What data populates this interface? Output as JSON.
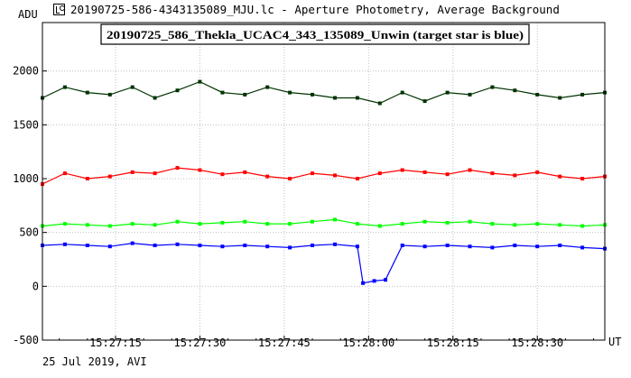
{
  "window": {
    "title": "20190725-586-4343135089_MJU.lc - Aperture Photometry, Average Background",
    "icon": "photometry-app-icon"
  },
  "footer": {
    "date_text": "25 Jul 2019, AVI"
  },
  "chart_data": {
    "type": "line",
    "title": "20190725_586_Thekla_UCAC4_343_135089_Unwin (target star is blue)",
    "ylabel": "ADU",
    "xlabel": "UT",
    "xlim": [
      "15:27:02",
      "15:28:42"
    ],
    "ylim": [
      -500,
      2450
    ],
    "yticks": [
      -500,
      0,
      500,
      1000,
      1500,
      2000
    ],
    "xticks": [
      "15:27:15",
      "15:27:30",
      "15:27:45",
      "15:28:00",
      "15:28:15",
      "15:28:30"
    ],
    "grid": true,
    "series": [
      {
        "color": "#003300",
        "x": [
          "15:27:02",
          "15:27:06",
          "15:27:10",
          "15:27:14",
          "15:27:18",
          "15:27:22",
          "15:27:26",
          "15:27:30",
          "15:27:34",
          "15:27:38",
          "15:27:42",
          "15:27:46",
          "15:27:50",
          "15:27:54",
          "15:27:58",
          "15:28:02",
          "15:28:06",
          "15:28:10",
          "15:28:14",
          "15:28:18",
          "15:28:22",
          "15:28:26",
          "15:28:30",
          "15:28:34",
          "15:28:38",
          "15:28:42"
        ],
        "values": [
          1750,
          1850,
          1800,
          1780,
          1850,
          1750,
          1820,
          1900,
          1800,
          1780,
          1850,
          1800,
          1780,
          1750,
          1750,
          1700,
          1800,
          1720,
          1800,
          1780,
          1850,
          1820,
          1780,
          1750,
          1780,
          1800
        ]
      },
      {
        "color": "#ff0000",
        "x": [
          "15:27:02",
          "15:27:06",
          "15:27:10",
          "15:27:14",
          "15:27:18",
          "15:27:22",
          "15:27:26",
          "15:27:30",
          "15:27:34",
          "15:27:38",
          "15:27:42",
          "15:27:46",
          "15:27:50",
          "15:27:54",
          "15:27:58",
          "15:28:02",
          "15:28:06",
          "15:28:10",
          "15:28:14",
          "15:28:18",
          "15:28:22",
          "15:28:26",
          "15:28:30",
          "15:28:34",
          "15:28:38",
          "15:28:42"
        ],
        "values": [
          950,
          1050,
          1000,
          1020,
          1060,
          1050,
          1100,
          1080,
          1040,
          1060,
          1020,
          1000,
          1050,
          1030,
          1000,
          1050,
          1080,
          1060,
          1040,
          1080,
          1050,
          1030,
          1060,
          1020,
          1000,
          1020
        ]
      },
      {
        "color": "#00ff00",
        "x": [
          "15:27:02",
          "15:27:06",
          "15:27:10",
          "15:27:14",
          "15:27:18",
          "15:27:22",
          "15:27:26",
          "15:27:30",
          "15:27:34",
          "15:27:38",
          "15:27:42",
          "15:27:46",
          "15:27:50",
          "15:27:54",
          "15:27:58",
          "15:28:02",
          "15:28:06",
          "15:28:10",
          "15:28:14",
          "15:28:18",
          "15:28:22",
          "15:28:26",
          "15:28:30",
          "15:28:34",
          "15:28:38",
          "15:28:42"
        ],
        "values": [
          560,
          580,
          570,
          560,
          580,
          570,
          600,
          580,
          590,
          600,
          580,
          580,
          600,
          620,
          580,
          560,
          580,
          600,
          590,
          600,
          580,
          570,
          580,
          570,
          560,
          570
        ]
      },
      {
        "color": "#0000ff",
        "x": [
          "15:27:02",
          "15:27:06",
          "15:27:10",
          "15:27:14",
          "15:27:18",
          "15:27:22",
          "15:27:26",
          "15:27:30",
          "15:27:34",
          "15:27:38",
          "15:27:42",
          "15:27:46",
          "15:27:50",
          "15:27:54",
          "15:27:58",
          "15:27:59",
          "15:28:01",
          "15:28:03",
          "15:28:06",
          "15:28:10",
          "15:28:14",
          "15:28:18",
          "15:28:22",
          "15:28:26",
          "15:28:30",
          "15:28:34",
          "15:28:38",
          "15:28:42"
        ],
        "values": [
          380,
          390,
          380,
          370,
          400,
          380,
          390,
          380,
          370,
          380,
          370,
          360,
          380,
          390,
          370,
          30,
          50,
          60,
          380,
          370,
          380,
          370,
          360,
          380,
          370,
          380,
          360,
          350
        ]
      }
    ]
  }
}
